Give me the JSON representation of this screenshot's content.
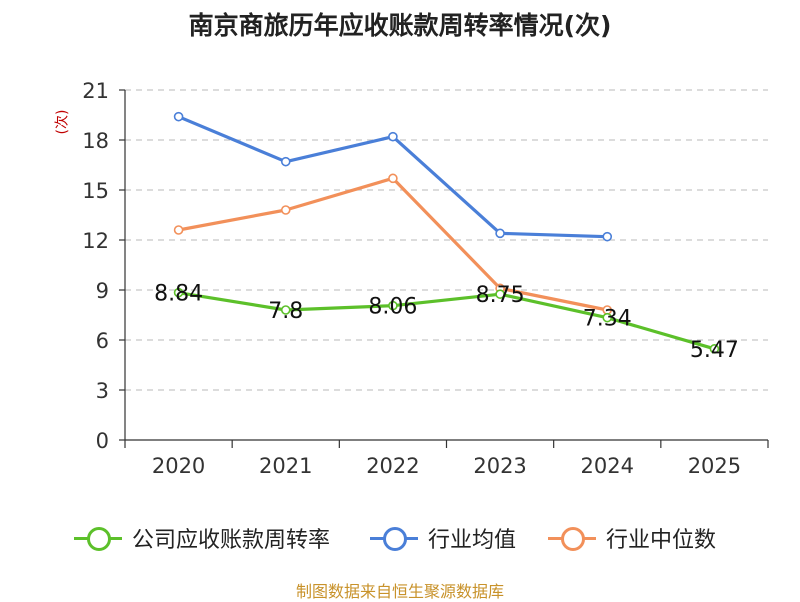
{
  "chart_data": {
    "type": "line",
    "title": "南京商旅历年应收账款周转率情况(次)",
    "ylabel": "(次)",
    "xlabel": "",
    "categories": [
      "2020",
      "2021",
      "2022",
      "2023",
      "2024",
      "2025"
    ],
    "ylim": [
      0,
      21
    ],
    "yticks": [
      0,
      3,
      6,
      9,
      12,
      15,
      18,
      21
    ],
    "grid": true,
    "legend_position": "bottom",
    "series": [
      {
        "name": "公司应收账款周转率",
        "color": "#5cc02a",
        "values": [
          8.84,
          7.8,
          8.06,
          8.75,
          7.34,
          5.47
        ],
        "labels": [
          "8.84",
          "7.8",
          "8.06",
          "8.75",
          "7.34",
          "5.47"
        ]
      },
      {
        "name": "行业均值",
        "color": "#4a7fd8",
        "values": [
          19.4,
          16.7,
          18.2,
          12.4,
          12.2,
          null
        ]
      },
      {
        "name": "行业中位数",
        "color": "#f2905a",
        "values": [
          12.6,
          13.8,
          15.7,
          9.1,
          7.8,
          null
        ]
      }
    ]
  },
  "source": "制图数据来自恒生聚源数据库"
}
